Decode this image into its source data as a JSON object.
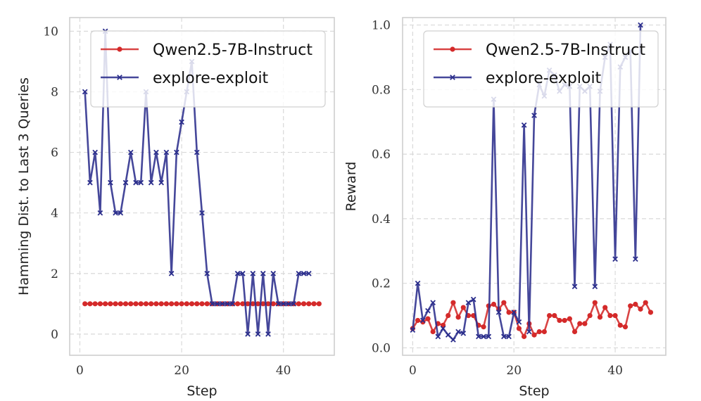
{
  "chart_data": [
    {
      "type": "line",
      "title": "",
      "xlabel": "Step",
      "ylabel": "Hamming Dist. to Last 3 Queries",
      "xlim": [
        -2,
        50
      ],
      "ylim": [
        -0.7,
        10.45
      ],
      "xticks": [
        0,
        20,
        40
      ],
      "yticks": [
        0,
        2,
        4,
        6,
        8,
        10
      ],
      "ytick_labels": [
        "0",
        "2",
        "4",
        "6",
        "8",
        "10"
      ],
      "grid": true,
      "legend_position": "upper-right",
      "series": [
        {
          "name": "Qwen2.5-7B-Instruct",
          "color": "#d42a2a",
          "marker": "circle",
          "x": [
            1,
            2,
            3,
            4,
            5,
            6,
            7,
            8,
            9,
            10,
            11,
            12,
            13,
            14,
            15,
            16,
            17,
            18,
            19,
            20,
            21,
            22,
            23,
            24,
            25,
            26,
            27,
            28,
            29,
            30,
            31,
            32,
            33,
            34,
            35,
            36,
            37,
            38,
            39,
            40,
            41,
            42,
            43,
            44,
            45,
            46,
            47
          ],
          "y": [
            1,
            1,
            1,
            1,
            1,
            1,
            1,
            1,
            1,
            1,
            1,
            1,
            1,
            1,
            1,
            1,
            1,
            1,
            1,
            1,
            1,
            1,
            1,
            1,
            1,
            1,
            1,
            1,
            1,
            1,
            1,
            1,
            1,
            1,
            1,
            1,
            1,
            1,
            1,
            1,
            1,
            1,
            1,
            1,
            1,
            1,
            1
          ]
        },
        {
          "name": "explore-exploit",
          "color": "#2b2e8c",
          "marker": "x",
          "x": [
            1,
            2,
            3,
            4,
            5,
            6,
            7,
            8,
            9,
            10,
            11,
            12,
            13,
            14,
            15,
            16,
            17,
            18,
            19,
            20,
            21,
            22,
            23,
            24,
            25,
            26,
            27,
            28,
            29,
            30,
            31,
            32,
            33,
            34,
            35,
            36,
            37,
            38,
            39,
            40,
            41,
            42,
            43,
            44,
            45
          ],
          "y": [
            8,
            5,
            6,
            4,
            10,
            5,
            4,
            4,
            5,
            6,
            5,
            5,
            8,
            5,
            6,
            5,
            6,
            2,
            6,
            7,
            8,
            9,
            6,
            4,
            2,
            1,
            1,
            1,
            1,
            1,
            2,
            2,
            0,
            2,
            0,
            2,
            0,
            2,
            1,
            1,
            1,
            1,
            2,
            2,
            2
          ]
        }
      ]
    },
    {
      "type": "line",
      "title": "",
      "xlabel": "Step",
      "ylabel": "Reward",
      "xlim": [
        -2,
        50
      ],
      "ylim": [
        -0.023,
        1.023
      ],
      "xticks": [
        0,
        20,
        40
      ],
      "yticks": [
        0,
        0.2,
        0.4,
        0.6,
        0.8,
        1.0
      ],
      "ytick_labels": [
        "0.0",
        "0.2",
        "0.4",
        "0.6",
        "0.8",
        "1.0"
      ],
      "grid": true,
      "legend_position": "upper-right",
      "series": [
        {
          "name": "Qwen2.5-7B-Instruct",
          "color": "#d42a2a",
          "marker": "circle",
          "x": [
            0,
            1,
            2,
            3,
            4,
            5,
            6,
            7,
            8,
            9,
            10,
            11,
            12,
            13,
            14,
            15,
            16,
            17,
            18,
            19,
            20,
            21,
            22,
            23,
            24,
            25,
            26,
            27,
            28,
            29,
            30,
            31,
            32,
            33,
            34,
            35,
            36,
            37,
            38,
            39,
            40,
            41,
            42,
            43,
            44,
            45,
            46,
            47
          ],
          "y": [
            0.06,
            0.085,
            0.08,
            0.09,
            0.05,
            0.075,
            0.07,
            0.1,
            0.14,
            0.095,
            0.125,
            0.1,
            0.1,
            0.07,
            0.065,
            0.13,
            0.135,
            0.12,
            0.14,
            0.11,
            0.11,
            0.06,
            0.035,
            0.075,
            0.04,
            0.05,
            0.05,
            0.1,
            0.1,
            0.085,
            0.085,
            0.09,
            0.05,
            0.075,
            0.075,
            0.1,
            0.14,
            0.095,
            0.125,
            0.1,
            0.1,
            0.07,
            0.065,
            0.13,
            0.135,
            0.12,
            0.14,
            0.11
          ]
        },
        {
          "name": "explore-exploit",
          "color": "#2b2e8c",
          "marker": "x",
          "x": [
            0,
            1,
            2,
            3,
            4,
            5,
            6,
            7,
            8,
            9,
            10,
            11,
            12,
            13,
            14,
            15,
            16,
            17,
            18,
            19,
            20,
            21,
            22,
            23,
            24,
            25,
            26,
            27,
            28,
            29,
            30,
            31,
            32,
            33,
            34,
            35,
            36,
            37,
            38,
            39,
            40,
            41,
            42,
            43,
            44,
            45
          ],
          "y": [
            0.055,
            0.2,
            0.085,
            0.115,
            0.14,
            0.035,
            0.06,
            0.04,
            0.025,
            0.05,
            0.045,
            0.14,
            0.15,
            0.035,
            0.035,
            0.035,
            0.77,
            0.11,
            0.035,
            0.035,
            0.11,
            0.08,
            0.69,
            0.05,
            0.72,
            0.815,
            0.78,
            0.86,
            0.845,
            0.795,
            0.815,
            0.81,
            0.19,
            0.81,
            0.795,
            0.81,
            0.19,
            0.795,
            0.9,
            0.94,
            0.275,
            0.87,
            0.9,
            0.92,
            0.275,
            1.0
          ]
        }
      ]
    }
  ]
}
